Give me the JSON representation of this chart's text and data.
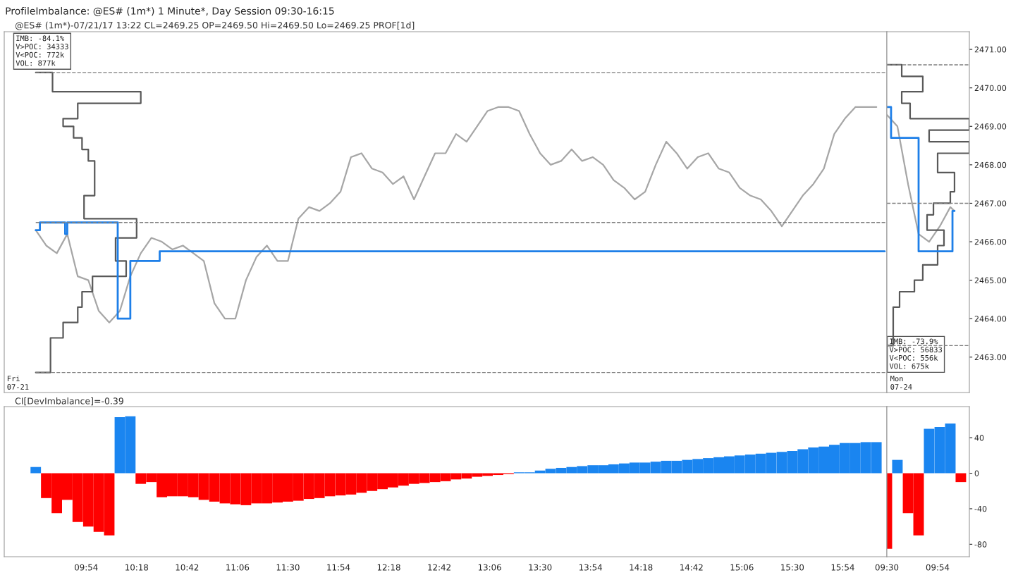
{
  "chart_data": [
    {
      "type": "line",
      "title": "ProfileImbalance: @ES# (1m*) 1 Minute*, Day Session 09:30-16:15",
      "subtitle": "@ES# (1m*)-07/21/17 13:22 CL=2469.25 OP=2469.50 Hi=2469.50 Lo=2469.25 PROF[1d]",
      "xlim": [
        9.25,
        16.25
      ],
      "ylim": [
        2462.08,
        2471.46
      ],
      "xticks": [
        {
          "value": 9.9,
          "label": null
        },
        {
          "value": 10.3,
          "label": null
        },
        {
          "value": 10.7,
          "label": null
        },
        {
          "value": 11.1,
          "label": null
        },
        {
          "value": 11.5,
          "label": null
        },
        {
          "value": 11.9,
          "label": null
        },
        {
          "value": 12.3,
          "label": null
        },
        {
          "value": 12.7,
          "label": null
        },
        {
          "value": 13.1,
          "label": null
        },
        {
          "value": 13.5,
          "label": null
        },
        {
          "value": 13.9,
          "label": null
        },
        {
          "value": 14.3,
          "label": null
        },
        {
          "value": 14.7,
          "label": null
        },
        {
          "value": 15.1,
          "label": null
        },
        {
          "value": 15.5,
          "label": null
        },
        {
          "value": 15.9,
          "label": null
        }
      ],
      "yticks": [
        {
          "value": 2463,
          "label": null
        },
        {
          "value": 2464,
          "label": null
        },
        {
          "value": 2465,
          "label": null
        },
        {
          "value": 2466,
          "label": null
        },
        {
          "value": 2467,
          "label": null
        },
        {
          "value": 2468,
          "label": null
        },
        {
          "value": 2469,
          "label": null
        },
        {
          "value": 2470,
          "label": null
        },
        {
          "value": 2471,
          "label": null
        }
      ],
      "tick_labels": false,
      "marker": "none",
      "line_style": "solid",
      "series": [
        {
          "type": "line",
          "color": "#a6a6a6",
          "x": [
            9.5,
            9.583,
            9.667,
            9.75,
            9.833,
            9.917,
            10,
            10.083,
            10.167,
            10.25,
            10.333,
            10.417,
            10.5,
            10.583,
            10.667,
            10.75,
            10.833,
            10.917,
            11,
            11.083,
            11.167,
            11.25,
            11.333,
            11.417,
            11.5,
            11.583,
            11.667,
            11.75,
            11.833,
            11.917,
            12,
            12.083,
            12.167,
            12.25,
            12.333,
            12.417,
            12.5,
            12.583,
            12.667,
            12.75,
            12.833,
            12.917,
            13,
            13.083,
            13.167,
            13.25,
            13.333,
            13.417,
            13.5,
            13.583,
            13.667,
            13.75,
            13.833,
            13.917,
            14,
            14.083,
            14.167,
            14.25,
            14.333,
            14.417,
            14.5,
            14.583,
            14.667,
            14.75,
            14.833,
            14.917,
            15,
            15.083,
            15.167,
            15.25,
            15.333,
            15.417,
            15.5,
            15.583,
            15.667,
            15.75,
            15.833,
            15.917,
            16,
            16.083,
            16.167
          ],
          "values": [
            2466.3,
            2465.9,
            2465.7,
            2466.2,
            2465.1,
            2465.0,
            2464.2,
            2463.9,
            2464.2,
            2465.1,
            2465.7,
            2466.1,
            2466.0,
            2465.8,
            2465.9,
            2465.7,
            2465.5,
            2464.4,
            2464.0,
            2464.0,
            2465.0,
            2465.6,
            2465.9,
            2465.5,
            2465.5,
            2466.6,
            2466.9,
            2466.8,
            2467.0,
            2467.3,
            2468.2,
            2468.3,
            2467.9,
            2467.8,
            2467.5,
            2467.7,
            2467.1,
            2467.7,
            2468.3,
            2468.3,
            2468.8,
            2468.6,
            2469.0,
            2469.4,
            2469.5,
            2469.5,
            2469.4,
            2468.8,
            2468.3,
            2468.0,
            2468.1,
            2468.4,
            2468.1,
            2468.2,
            2468.0,
            2467.6,
            2467.4,
            2467.1,
            2467.3,
            2468.0,
            2468.6,
            2468.3,
            2467.9,
            2468.2,
            2468.3,
            2467.9,
            2467.8,
            2467.4,
            2467.2,
            2467.1,
            2466.8,
            2466.4,
            2466.8,
            2467.2,
            2467.5,
            2467.9,
            2468.8,
            2469.2,
            2469.5,
            2469.5,
            2469.5
          ]
        },
        {
          "type": "line",
          "color": "#595959",
          "x": [
            9.5,
            9.633,
            9.633,
            10.333,
            10.333,
            9.833,
            9.833,
            9.717,
            9.717,
            9.8,
            9.8,
            9.867,
            9.867,
            9.917,
            9.917,
            9.967,
            9.967,
            9.883,
            9.883,
            10.3,
            10.3,
            10.133,
            10.133,
            10.217,
            10.217,
            9.95,
            9.95,
            9.867,
            9.867,
            9.833,
            9.833,
            9.717,
            9.717,
            9.617,
            9.617,
            9.5
          ],
          "values": [
            2470.4,
            2470.4,
            2469.9,
            2469.9,
            2469.6,
            2469.6,
            2469.2,
            2469.2,
            2469.0,
            2469.0,
            2468.7,
            2468.7,
            2468.4,
            2468.4,
            2468.1,
            2468.1,
            2467.2,
            2467.2,
            2466.6,
            2466.6,
            2466.1,
            2466.1,
            2465.5,
            2465.5,
            2465.1,
            2465.1,
            2464.7,
            2464.7,
            2464.3,
            2464.3,
            2463.9,
            2463.9,
            2463.5,
            2463.5,
            2462.6,
            2462.6
          ]
        },
        {
          "type": "step",
          "color": "#1e7fe8",
          "x": [
            9.5,
            9.533,
            9.733,
            9.75,
            10.15,
            10.25,
            10.483,
            16.233
          ],
          "values": [
            2466.3,
            2466.5,
            2466.2,
            2466.5,
            2464.0,
            2465.5,
            2465.75,
            2465.75
          ]
        },
        {
          "type": "line",
          "color": "#808080",
          "line_style": "dashed",
          "x": [
            9.5,
            16.25
          ],
          "values": [
            2470.4,
            2470.4
          ]
        },
        {
          "type": "line",
          "color": "#808080",
          "line_style": "dashed",
          "x": [
            9.5,
            16.25
          ],
          "values": [
            2466.5,
            2466.5
          ]
        },
        {
          "type": "line",
          "color": "#808080",
          "line_style": "dashed",
          "x": [
            9.5,
            16.25
          ],
          "values": [
            2462.6,
            2462.6
          ]
        }
      ],
      "annotations": [
        "IMB: -84.1%\nV>POC: 34333\nV<POC: 772k\nVOL: 877k",
        "Fri\n07-21"
      ]
    },
    {
      "type": "line",
      "xlim": [
        9.5,
        10.15
      ],
      "ylim": [
        2462.08,
        2471.46
      ],
      "xticks": [
        {
          "value": 9.5,
          "label": null
        },
        {
          "value": 9.9,
          "label": null
        }
      ],
      "yticks": [
        {
          "value": 2463,
          "label": "2463.00"
        },
        {
          "value": 2464,
          "label": "2464.00"
        },
        {
          "value": 2465,
          "label": "2465.00"
        },
        {
          "value": 2466,
          "label": "2466.00"
        },
        {
          "value": 2467,
          "label": "2467.00"
        },
        {
          "value": 2468,
          "label": "2468.00"
        },
        {
          "value": 2469,
          "label": "2469.00"
        },
        {
          "value": 2470,
          "label": "2470.00"
        },
        {
          "value": 2471,
          "label": "2471.00"
        }
      ],
      "tick_labels": "y",
      "marker": "none",
      "line_style": "solid",
      "series": [
        {
          "type": "line",
          "color": "#a6a6a6",
          "x": [
            9.5,
            9.583,
            9.667,
            9.75,
            9.833,
            9.917,
            10,
            10.033
          ],
          "values": [
            2469.3,
            2469.0,
            2467.5,
            2466.2,
            2466.0,
            2466.4,
            2466.9,
            2466.8
          ]
        },
        {
          "type": "line",
          "color": "#595959",
          "x": [
            9.5,
            9.617,
            9.617,
            9.783,
            9.783,
            9.617,
            9.617,
            9.683,
            9.683,
            10.15,
            10.15,
            9.833,
            9.833,
            10.15,
            10.15,
            9.9,
            9.9,
            10.033,
            10.033,
            10.0,
            10.0,
            9.867,
            9.867,
            9.817,
            9.817,
            9.95,
            9.95,
            9.9,
            9.9,
            9.783,
            9.783,
            9.717,
            9.717,
            9.6,
            9.6,
            9.55,
            9.55,
            9.5
          ],
          "values": [
            2470.6,
            2470.6,
            2470.3,
            2470.3,
            2469.9,
            2469.9,
            2469.6,
            2469.6,
            2469.2,
            2469.2,
            2468.9,
            2468.9,
            2468.6,
            2468.6,
            2468.3,
            2468.3,
            2467.8,
            2467.8,
            2467.3,
            2467.3,
            2467.0,
            2467.0,
            2466.7,
            2466.7,
            2466.3,
            2466.3,
            2465.9,
            2465.9,
            2465.4,
            2465.4,
            2465.0,
            2465.0,
            2464.7,
            2464.7,
            2464.3,
            2464.3,
            2463.3,
            2463.3
          ]
        },
        {
          "type": "step",
          "color": "#1e7fe8",
          "x": [
            9.5,
            9.533,
            9.75,
            10.017,
            10.033
          ],
          "values": [
            2469.5,
            2468.7,
            2465.75,
            2466.8,
            2466.8
          ]
        },
        {
          "type": "line",
          "color": "#808080",
          "line_style": "dashed",
          "x": [
            9.5,
            10.15
          ],
          "values": [
            2470.6,
            2470.6
          ]
        },
        {
          "type": "line",
          "color": "#808080",
          "line_style": "dashed",
          "x": [
            9.5,
            10.15
          ],
          "values": [
            2467.0,
            2467.0
          ]
        },
        {
          "type": "line",
          "color": "#808080",
          "line_style": "dashed",
          "x": [
            9.5,
            10.15
          ],
          "values": [
            2463.3,
            2463.3
          ]
        }
      ],
      "annotations": [
        "IMB: -73.9%\nV>POC: 56833\nV<POC: 556k\nVOL: 675k",
        "Mon\n07-24"
      ]
    },
    {
      "type": "bar",
      "title": "CI[DevImbalance]=-0.39",
      "xlim": [
        9.25,
        16.25
      ],
      "ylim": [
        -94,
        75
      ],
      "xticks": [
        {
          "value": 9.9,
          "label": "09:54"
        },
        {
          "value": 10.3,
          "label": "10:18"
        },
        {
          "value": 10.7,
          "label": "10:42"
        },
        {
          "value": 11.1,
          "label": "11:06"
        },
        {
          "value": 11.5,
          "label": "11:30"
        },
        {
          "value": 11.9,
          "label": "11:54"
        },
        {
          "value": 12.3,
          "label": "12:18"
        },
        {
          "value": 12.7,
          "label": "12:42"
        },
        {
          "value": 13.1,
          "label": "13:06"
        },
        {
          "value": 13.5,
          "label": "13:30"
        },
        {
          "value": 13.9,
          "label": "13:54"
        },
        {
          "value": 14.3,
          "label": "14:18"
        },
        {
          "value": 14.7,
          "label": "14:42"
        },
        {
          "value": 15.1,
          "label": "15:06"
        },
        {
          "value": 15.5,
          "label": "15:30"
        },
        {
          "value": 15.9,
          "label": "15:54"
        }
      ],
      "yticks": [
        {
          "value": -80,
          "label": null
        },
        {
          "value": -40,
          "label": null
        },
        {
          "value": 0,
          "label": null
        },
        {
          "value": 40,
          "label": null
        }
      ],
      "tick_labels": "x",
      "series": [
        {
          "color": "#ff0000",
          "x": [
            9.583,
            9.667,
            9.75,
            9.833,
            9.917,
            10,
            10.083,
            10.333,
            10.417,
            10.5,
            10.583,
            10.667,
            10.75,
            10.833,
            10.917,
            11,
            11.083,
            11.167,
            11.25,
            11.333,
            11.417,
            11.5,
            11.583,
            11.667,
            11.75,
            11.833,
            11.917,
            12,
            12.083,
            12.167,
            12.25,
            12.333,
            12.417,
            12.5,
            12.583,
            12.667,
            12.75,
            12.833,
            12.917,
            13,
            13.083,
            13.167,
            13.25
          ],
          "values": [
            -28,
            -45,
            -30,
            -55,
            -60,
            -66,
            -70,
            -12,
            -10,
            -27,
            -26,
            -26,
            -27,
            -30,
            -32,
            -34,
            -35,
            -36,
            -34,
            -34,
            -33,
            -32,
            -31,
            -29,
            -28,
            -26,
            -25,
            -24,
            -22,
            -20,
            -18,
            -16,
            -14,
            -12,
            -11,
            -10,
            -9,
            -7,
            -6,
            -4,
            -3,
            -2,
            -1
          ]
        },
        {
          "color": "#1a85f0",
          "x": [
            9.5,
            10.167,
            10.25,
            13.333,
            13.417,
            13.5,
            13.583,
            13.667,
            13.75,
            13.833,
            13.917,
            14,
            14.083,
            14.167,
            14.25,
            14.333,
            14.417,
            14.5,
            14.583,
            14.667,
            14.75,
            14.833,
            14.917,
            15,
            15.083,
            15.167,
            15.25,
            15.333,
            15.417,
            15.5,
            15.583,
            15.667,
            15.75,
            15.833,
            15.917,
            16,
            16.083,
            16.167
          ],
          "values": [
            7,
            63,
            64,
            1,
            1,
            3,
            5,
            6,
            7,
            8,
            9,
            9,
            10,
            11,
            12,
            12,
            13,
            14,
            14,
            15,
            16,
            17,
            18,
            19,
            20,
            21,
            22,
            23,
            24,
            25,
            27,
            29,
            30,
            32,
            34,
            34,
            35,
            35
          ]
        }
      ]
    },
    {
      "type": "bar",
      "xlim": [
        9.5,
        10.15
      ],
      "ylim": [
        -94,
        75
      ],
      "xticks": [
        {
          "value": 9.5,
          "label": "09:30"
        },
        {
          "value": 9.9,
          "label": "09:54"
        }
      ],
      "yticks": [
        -80,
        -40,
        0,
        40
      ],
      "series": [
        {
          "color": "#ff0000",
          "x": [
            9.5,
            9.667,
            9.75,
            10.083
          ],
          "values": [
            -85,
            -45,
            -70,
            -10
          ]
        },
        {
          "color": "#1a85f0",
          "x": [
            9.583,
            9.833,
            9.917,
            10.0
          ],
          "values": [
            15,
            50,
            52,
            56
          ]
        }
      ]
    }
  ]
}
